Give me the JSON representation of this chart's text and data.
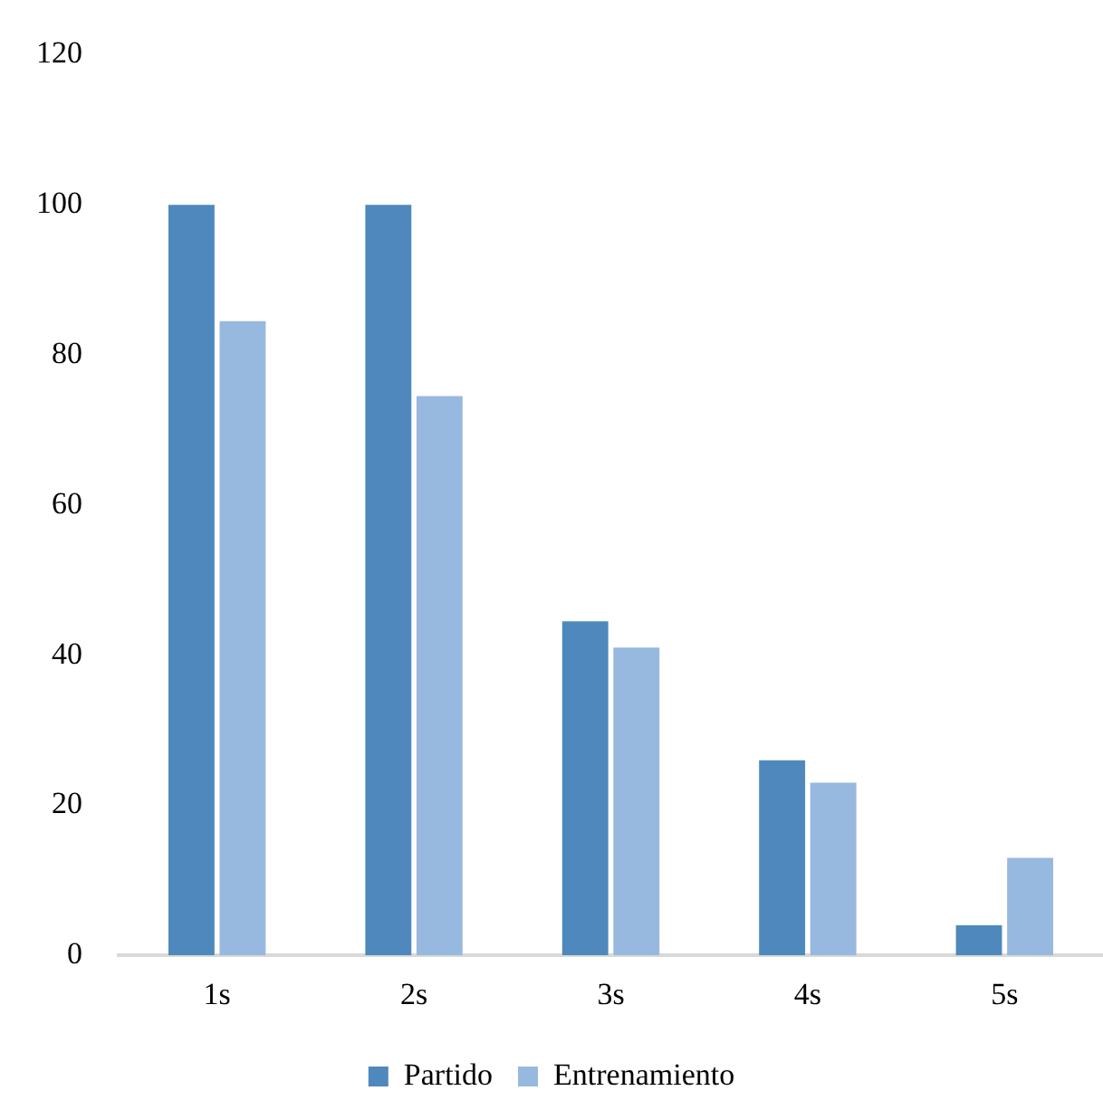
{
  "chart_data": {
    "type": "bar",
    "categories": [
      "1s",
      "2s",
      "3s",
      "4s",
      "5s"
    ],
    "series": [
      {
        "name": "Partido",
        "color": "#4f88bc",
        "values": [
          100,
          100,
          44.5,
          26,
          4
        ]
      },
      {
        "name": "Entrenamiento",
        "color": "#97b8df",
        "values": [
          84.5,
          74.5,
          41,
          23,
          13
        ]
      }
    ],
    "ylim": [
      0,
      120
    ],
    "yticks": [
      0,
      20,
      40,
      60,
      80,
      100,
      120
    ],
    "grid": false,
    "legend": "bottom"
  }
}
